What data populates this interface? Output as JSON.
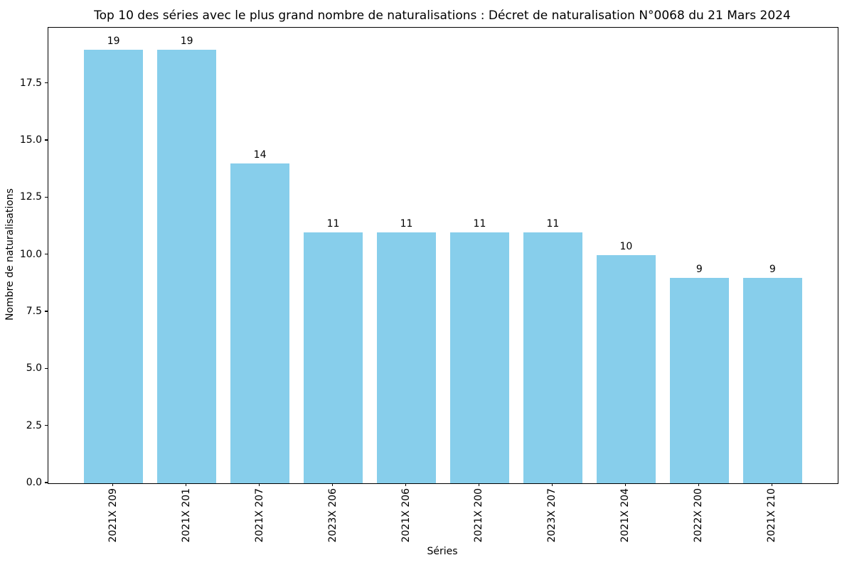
{
  "chart_data": {
    "type": "bar",
    "title": "Top 10 des séries avec le plus grand nombre de naturalisations : Décret de naturalisation N°0068 du 21 Mars 2024",
    "xlabel": "Séries",
    "ylabel": "Nombre de naturalisations",
    "categories": [
      "2021X 209",
      "2021X 201",
      "2021X 207",
      "2023X 206",
      "2021X 206",
      "2021X 200",
      "2023X 207",
      "2021X 204",
      "2022X 200",
      "2021X 210"
    ],
    "values": [
      19,
      19,
      14,
      11,
      11,
      11,
      11,
      10,
      9,
      9
    ],
    "bar_labels": [
      "19",
      "19",
      "14",
      "11",
      "11",
      "11",
      "11",
      "10",
      "9",
      "9"
    ],
    "yticks": [
      0.0,
      2.5,
      5.0,
      7.5,
      10.0,
      12.5,
      15.0,
      17.5
    ],
    "ytick_labels": [
      "0.0",
      "2.5",
      "5.0",
      "7.5",
      "10.0",
      "12.5",
      "15.0",
      "17.5"
    ],
    "ylim": [
      0,
      19.95
    ],
    "bar_color": "#87CEEB",
    "grid": false,
    "legend_position": "none"
  }
}
